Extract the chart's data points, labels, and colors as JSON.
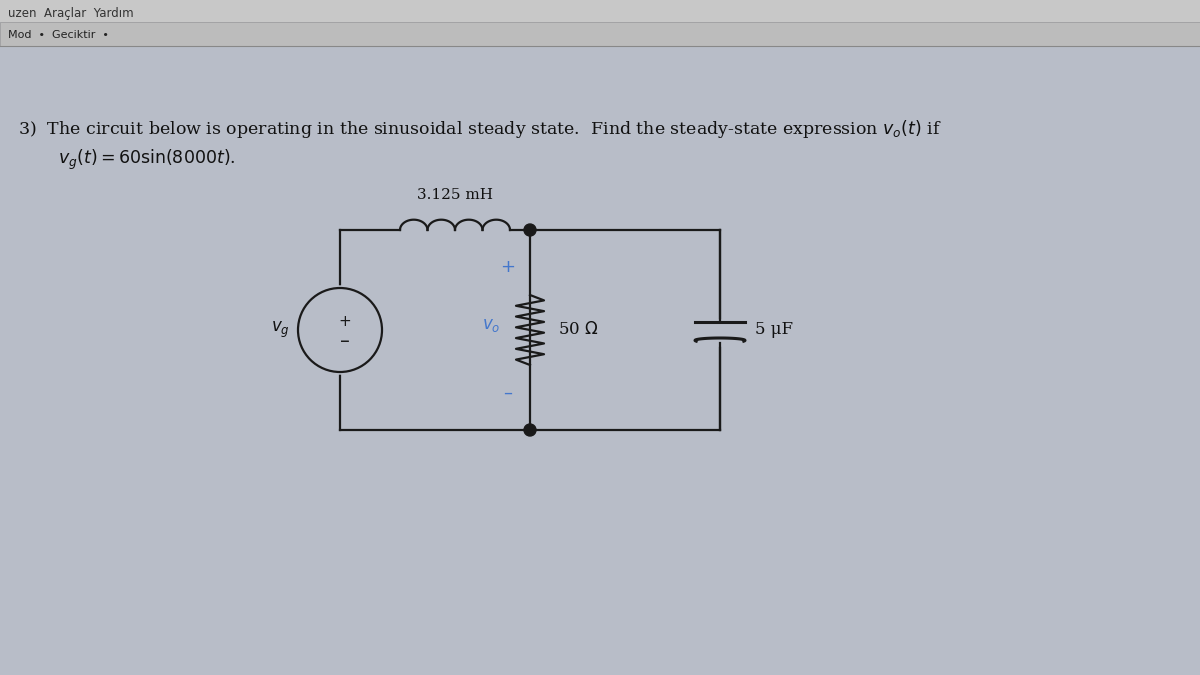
{
  "bg_color": "#b8bdc8",
  "toolbar1_color": "#c0c0c0",
  "toolbar2_color": "#b0b5c0",
  "paper_color": "#b8bdc8",
  "circuit_color": "#1a1a1a",
  "blue_color": "#4477cc",
  "text_color": "#111111",
  "inductor_label": "3.125 mH",
  "resistor_label": "50 Ω",
  "capacitor_label": "5 μF",
  "toolbar1_text": "uzen  Araçlar  Yardım",
  "toolbar2_text": "Mod  •  Geciktir  •",
  "problem_line1": "3)  The circuit below is operating in the sinusoidal steady state.  Find the steady-state expression $v_o(t)$ if",
  "problem_line2": "$v_g(t) = 60\\sin(8000t)$."
}
